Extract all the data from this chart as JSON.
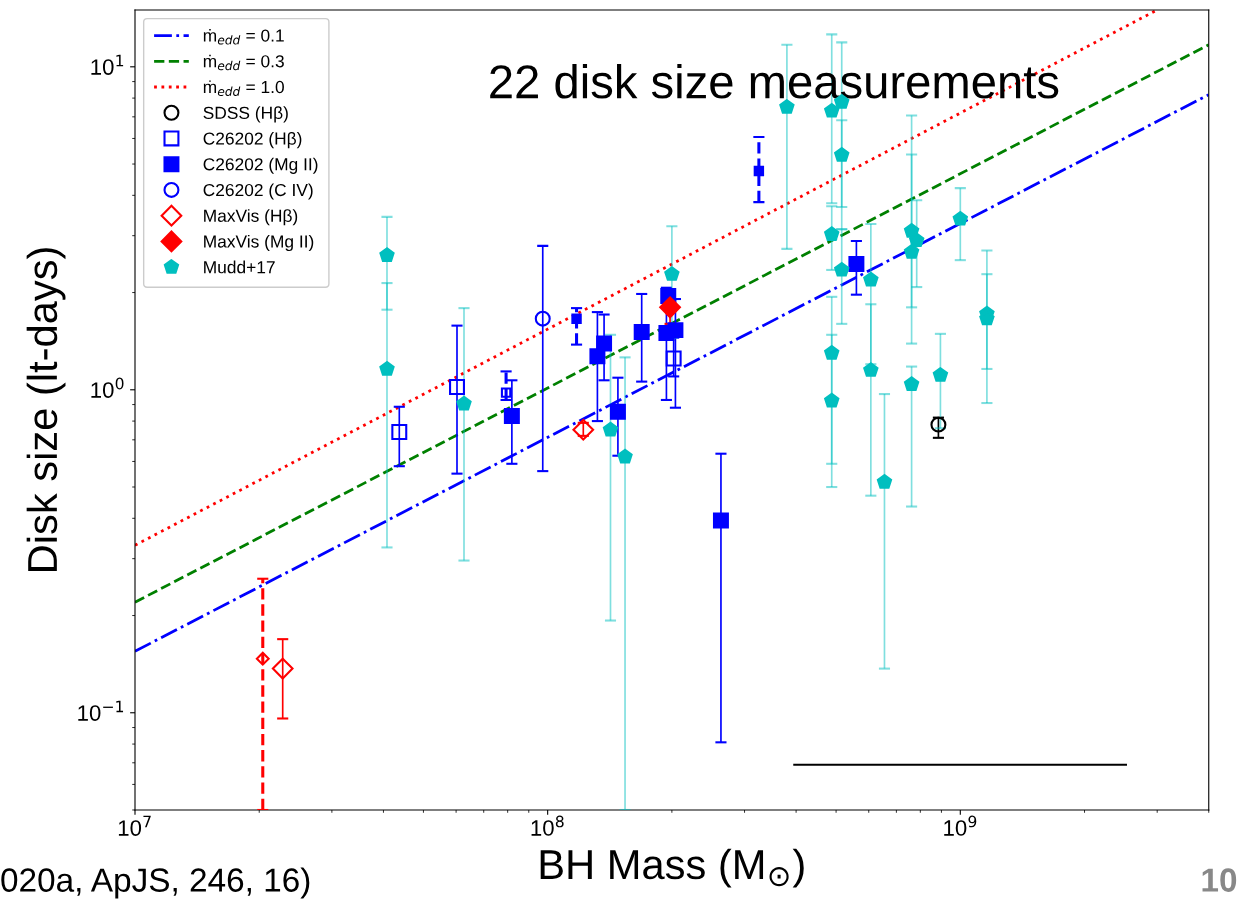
{
  "chart_data": {
    "type": "scatter",
    "title": "22 disk size measurements",
    "xlabel": "BH Mass (M$_{⊙}$)",
    "ylabel": "Disk size (lt-days)",
    "log": "xy",
    "xlim": [
      10000000,
      4000000000
    ],
    "ylim": [
      0.05,
      15
    ],
    "xticks": [
      {
        "value": 10000000,
        "label": "10$^{7}$"
      },
      {
        "value": 100000000,
        "label": "10$^{8}$"
      },
      {
        "value": 1000000000,
        "label": "10$^{9}$"
      }
    ],
    "yticks": [
      {
        "value": 0.1,
        "label": "10$^{−1}$"
      },
      {
        "value": 1,
        "label": "10$^{0}$"
      },
      {
        "value": 10,
        "label": "10$^{1}$"
      }
    ],
    "legend": "top left",
    "annotations": [
      "020a, ApJS, 246, 16)",
      "10"
    ],
    "series": [
      {
        "type": "line",
        "name": "ṁ$_{edd}$ = 0.1",
        "color": "#0000ff",
        "line_style": "dashdot",
        "x": [
          10000000,
          4000000000
        ],
        "values": [
          0.155,
          8.2
        ]
      },
      {
        "type": "line",
        "name": "ṁ$_{edd}$ = 0.3",
        "color": "#008000",
        "line_style": "dashed",
        "x": [
          10000000,
          4000000000
        ],
        "values": [
          0.22,
          11.7
        ]
      },
      {
        "type": "line",
        "name": "ṁ$_{edd}$ = 1.0",
        "color": "#ff0000",
        "line_style": "dotted",
        "x": [
          10000000,
          3000000000
        ],
        "values": [
          0.33,
          15
        ]
      },
      {
        "type": "scatter",
        "name": "SDSS (Hβ)",
        "color": "#000000",
        "marker": "circle-open",
        "x": [
          885000000
        ],
        "values": [
          0.78
        ],
        "errors": [
          [
            0.71,
            0.82
          ]
        ]
      },
      {
        "type": "scatter",
        "name": "C26202 (Hβ)",
        "color": "#0000ff",
        "marker": "square-open",
        "x": [
          43700000,
          60300000,
          202000000
        ],
        "values": [
          0.74,
          1.02,
          1.25
        ],
        "errors": [
          [
            0.58,
            0.886
          ],
          [
            0.55,
            1.58
          ],
          [
            1.1,
            1.45
          ]
        ]
      },
      {
        "type": "scatter",
        "color": "#0000ff",
        "marker": "square-open",
        "line_style": "dashed",
        "x": [
          79300000
        ],
        "values": [
          0.98
        ],
        "errors": [
          [
            0.93,
            1.14
          ]
        ]
      },
      {
        "type": "scatter",
        "name": "C26202 (Mg II)",
        "color": "#0000ff",
        "marker": "square",
        "x": [
          81900000,
          132000000,
          137000000,
          148000000,
          169000000,
          194000000,
          196000000,
          204000000,
          263000000,
          560000000
        ],
        "values": [
          0.83,
          1.27,
          1.39,
          0.855,
          1.51,
          1.5,
          1.95,
          1.53,
          0.394,
          2.45
        ],
        "errors": [
          [
            0.59,
            1.07
          ],
          [
            0.8,
            1.74
          ],
          [
            1.07,
            1.71
          ],
          [
            0.625,
            1.09
          ],
          [
            1.06,
            1.98
          ],
          [
            0.93,
            2.07
          ],
          null,
          [
            0.88,
            1.91
          ],
          [
            0.081,
            0.634
          ],
          [
            1.97,
            2.89
          ]
        ]
      },
      {
        "type": "scatter",
        "color": "#0000ff",
        "marker": "square",
        "line_style": "dashed",
        "x": [
          117500000,
          325000000
        ],
        "values": [
          1.66,
          4.76
        ],
        "errors": [
          [
            1.38,
            1.79
          ],
          [
            3.81,
            6.06
          ]
        ]
      },
      {
        "type": "scatter",
        "name": "C26202 (C IV)",
        "color": "#0000ff",
        "marker": "circle-open",
        "x": [
          97300000
        ],
        "values": [
          1.66
        ],
        "errors": [
          [
            0.56,
            2.79
          ]
        ]
      },
      {
        "type": "scatter",
        "name": "MaxVis (Hβ)",
        "color": "#ff0000",
        "marker": "diamond-open",
        "x": [
          22800000,
          122000000
        ],
        "values": [
          0.137,
          0.752
        ],
        "errors": [
          [
            0.096,
            0.169
          ],
          [
            0.72,
            0.79
          ]
        ]
      },
      {
        "type": "scatter",
        "color": "#ff0000",
        "marker": "diamond-open",
        "line_style": "dashed",
        "x": [
          20400000
        ],
        "values": [
          0.147
        ],
        "errors": [
          [
            0.05,
            0.26
          ]
        ]
      },
      {
        "type": "scatter",
        "name": "MaxVis (Mg II)",
        "color": "#ff0000",
        "marker": "diamond",
        "x": [
          198000000
        ],
        "values": [
          1.8
        ],
        "errors": [
          [
            1.6,
            2.05
          ]
        ]
      },
      {
        "name": "Mudd+17",
        "color": "#00bfbf",
        "x": [
          40800000,
          40800000,
          62700000,
          142000000,
          154000000,
          200000000,
          380000000,
          488000000,
          488000000,
          488000000,
          488000000,
          516000000,
          516000000,
          516000000,
          607000000,
          607000000,
          655000000,
          762000000,
          762000000,
          762000000,
          784000000,
          895000000,
          1000000000,
          1160000000,
          1160000000
        ],
        "values": [
          2.61,
          1.16,
          0.905,
          0.752,
          0.62,
          2.28,
          7.5,
          7.3,
          3.03,
          1.3,
          0.925,
          7.78,
          5.33,
          2.35,
          2.19,
          1.15,
          0.518,
          3.1,
          2.67,
          1.04,
          2.9,
          1.11,
          3.38,
          1.72,
          1.66
        ],
        "errors": [
          [
            1.77,
            3.43
          ],
          [
            0.325,
            2.14
          ],
          [
            0.296,
            1.79
          ],
          [
            0.193,
            1.48
          ],
          [
            0.05,
            1.26
          ],
          [
            1.45,
            3.21
          ],
          [
            2.73,
            11.7
          ],
          [
            3.78,
            12.6
          ],
          [
            2.35,
            3.7
          ],
          [
            0.59,
            1.94
          ],
          [
            0.5,
            1.48
          ],
          [
            3.68,
            11.9
          ],
          [
            3.14,
            6.83
          ],
          [
            1.6,
            3.14
          ],
          [
            1.2,
            3.26
          ],
          [
            0.47,
            1.84
          ],
          [
            0.137,
            0.97
          ],
          [
            1.39,
            7.07
          ],
          [
            1.8,
            5.35
          ],
          [
            0.435,
            1.18
          ],
          [
            2.08,
            3.86
          ],
          [
            0.76,
            1.49
          ],
          [
            2.52,
            4.21
          ],
          [
            1.16,
            2.7
          ],
          [
            0.91,
            2.28
          ]
        ]
      },
      {
        "type": "line",
        "color": "#000000",
        "x": [
          396000000,
          2520000000
        ],
        "values": [
          0.069,
          0.069
        ]
      }
    ]
  }
}
